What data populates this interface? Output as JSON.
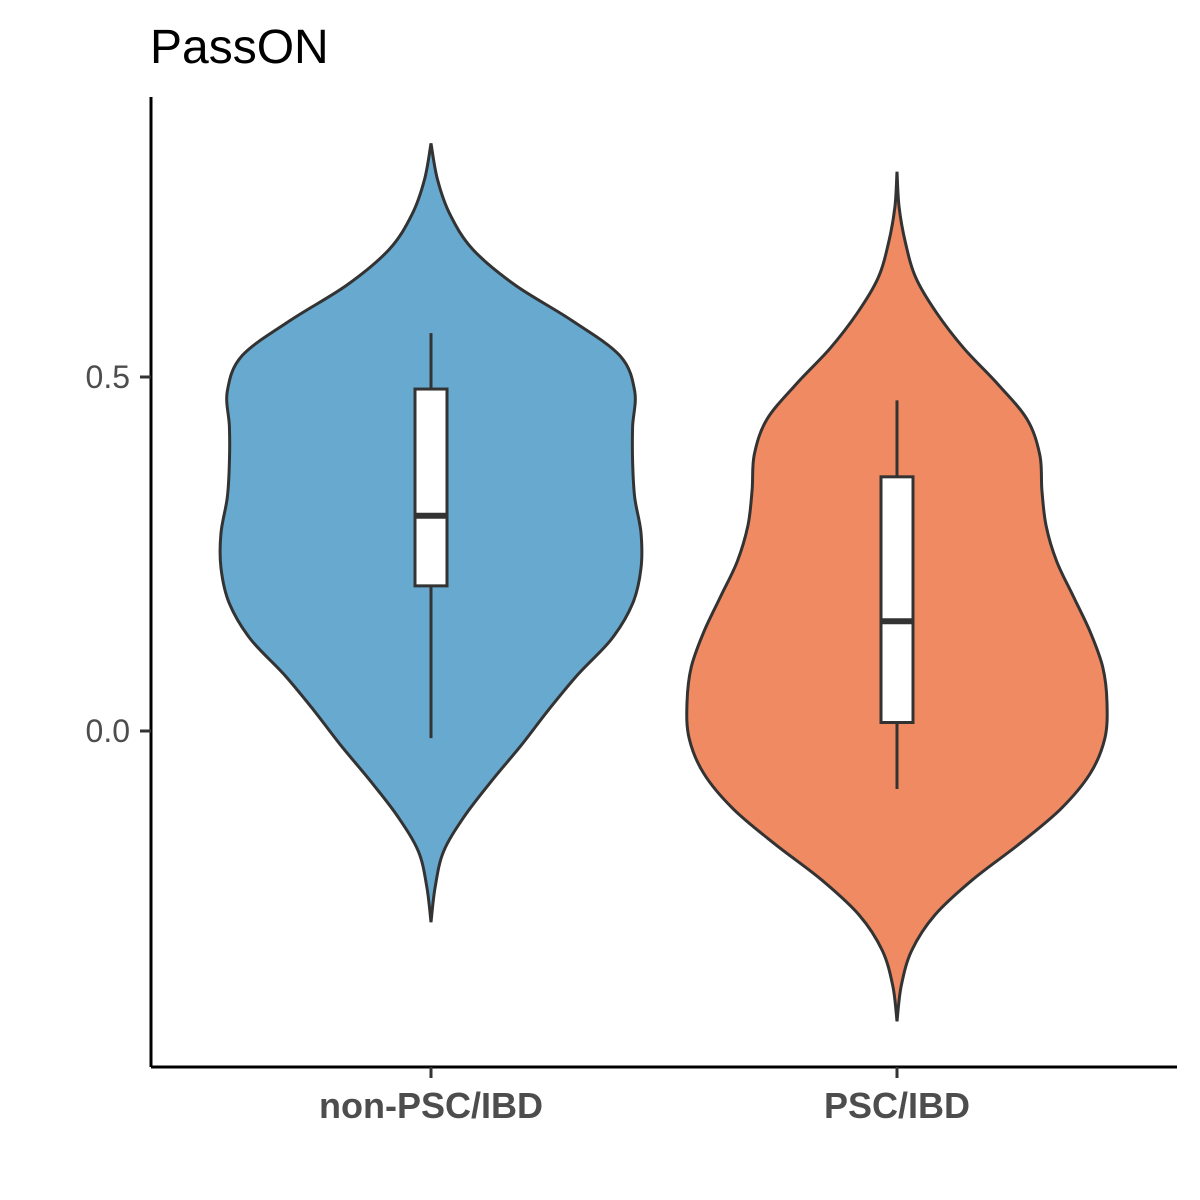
{
  "chart_data": {
    "type": "violin",
    "title": "PassON",
    "xlabel": "",
    "ylabel": "",
    "categories": [
      "non-PSC/IBD",
      "PSC/IBD"
    ],
    "y_ticks": [
      {
        "value": 0.0,
        "label": "0.0"
      },
      {
        "value": 0.5,
        "label": "0.5"
      }
    ],
    "ylim": [
      -0.47,
      0.9
    ],
    "grid": false,
    "legend": "none",
    "series": [
      {
        "category": "non-PSC/IBD",
        "color": "#67a9cf",
        "boxplot": {
          "whisker_low": -0.01,
          "q1": 0.205,
          "median": 0.304,
          "q3": 0.483,
          "whisker_high": 0.562
        },
        "violin": {
          "y_min": -0.27,
          "y_max": 0.83,
          "profile": [
            [
              -0.27,
              0.0
            ],
            [
              -0.22,
              0.02
            ],
            [
              -0.17,
              0.06
            ],
            [
              -0.12,
              0.16
            ],
            [
              -0.07,
              0.29
            ],
            [
              -0.02,
              0.43
            ],
            [
              0.03,
              0.56
            ],
            [
              0.08,
              0.7
            ],
            [
              0.13,
              0.86
            ],
            [
              0.18,
              0.96
            ],
            [
              0.23,
              1.0
            ],
            [
              0.28,
              1.0
            ],
            [
              0.33,
              0.97
            ],
            [
              0.38,
              0.96
            ],
            [
              0.43,
              0.96
            ],
            [
              0.48,
              0.97
            ],
            [
              0.53,
              0.9
            ],
            [
              0.58,
              0.67
            ],
            [
              0.63,
              0.4
            ],
            [
              0.68,
              0.2
            ],
            [
              0.73,
              0.09
            ],
            [
              0.78,
              0.03
            ],
            [
              0.83,
              0.0
            ]
          ]
        }
      },
      {
        "category": "PSC/IBD",
        "color": "#ef8a62",
        "boxplot": {
          "whisker_low": -0.082,
          "q1": 0.012,
          "median": 0.155,
          "q3": 0.359,
          "whisker_high": 0.467
        },
        "violin": {
          "y_min": -0.41,
          "y_max": 0.79,
          "profile": [
            [
              -0.41,
              0.0
            ],
            [
              -0.36,
              0.02
            ],
            [
              -0.31,
              0.07
            ],
            [
              -0.26,
              0.18
            ],
            [
              -0.21,
              0.36
            ],
            [
              -0.16,
              0.58
            ],
            [
              -0.11,
              0.78
            ],
            [
              -0.06,
              0.92
            ],
            [
              -0.01,
              0.99
            ],
            [
              0.04,
              1.0
            ],
            [
              0.09,
              0.98
            ],
            [
              0.14,
              0.92
            ],
            [
              0.19,
              0.84
            ],
            [
              0.24,
              0.76
            ],
            [
              0.29,
              0.71
            ],
            [
              0.34,
              0.69
            ],
            [
              0.39,
              0.68
            ],
            [
              0.44,
              0.62
            ],
            [
              0.49,
              0.48
            ],
            [
              0.54,
              0.32
            ],
            [
              0.59,
              0.19
            ],
            [
              0.64,
              0.09
            ],
            [
              0.69,
              0.04
            ],
            [
              0.74,
              0.01
            ],
            [
              0.79,
              0.0
            ]
          ]
        }
      }
    ]
  }
}
